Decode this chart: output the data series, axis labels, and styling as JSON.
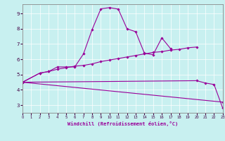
{
  "bg_color": "#c8f0f0",
  "line_color": "#990099",
  "xlabel": "Windchill (Refroidissement éolien,°C)",
  "xlim": [
    0,
    23
  ],
  "ylim": [
    2.5,
    9.6
  ],
  "xticks": [
    0,
    1,
    2,
    3,
    4,
    5,
    6,
    7,
    8,
    9,
    10,
    11,
    12,
    13,
    14,
    15,
    16,
    17,
    18,
    19,
    20,
    21,
    22,
    23
  ],
  "yticks": [
    3,
    4,
    5,
    6,
    7,
    8,
    9
  ],
  "line1_x": [
    0,
    2,
    3,
    4,
    5,
    6,
    7,
    8,
    9,
    10,
    11,
    12,
    13,
    14,
    15,
    16,
    17
  ],
  "line1_y": [
    4.5,
    5.1,
    5.2,
    5.5,
    5.5,
    5.5,
    6.35,
    7.95,
    9.3,
    9.38,
    9.28,
    8.0,
    7.8,
    6.4,
    6.3,
    7.4,
    6.7
  ],
  "line2_x": [
    0,
    2,
    3,
    4,
    5,
    6,
    7,
    8,
    9,
    10,
    11,
    12,
    13,
    14,
    15,
    16,
    17,
    18,
    19,
    20
  ],
  "line2_y": [
    4.5,
    5.1,
    5.2,
    5.35,
    5.45,
    5.55,
    5.6,
    5.7,
    5.85,
    5.95,
    6.05,
    6.15,
    6.25,
    6.35,
    6.45,
    6.5,
    6.6,
    6.65,
    6.75,
    6.8
  ],
  "line3_x": [
    0,
    23
  ],
  "line3_y": [
    4.5,
    3.2
  ],
  "line4_x": [
    0,
    20,
    21,
    22,
    23
  ],
  "line4_y": [
    4.5,
    4.6,
    4.45,
    4.35,
    2.8
  ]
}
